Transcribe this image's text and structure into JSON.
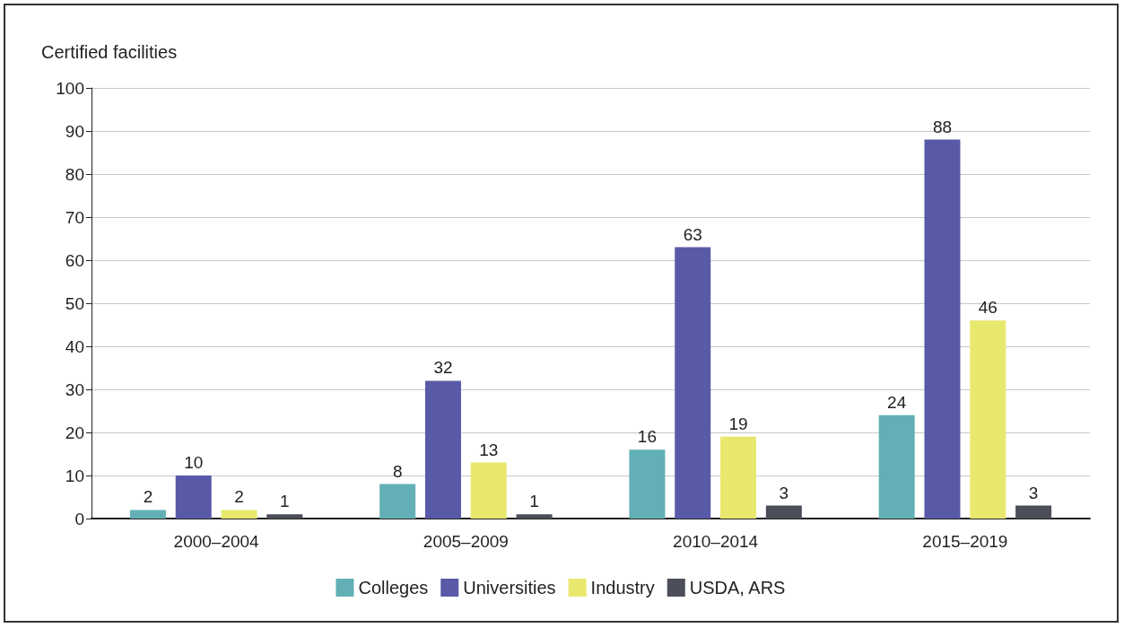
{
  "chart_data": {
    "type": "bar",
    "ylabel": "Certified facilities",
    "categories": [
      "2000–2004",
      "2005–2009",
      "2010–2014",
      "2015–2019"
    ],
    "series": [
      {
        "name": "Colleges",
        "color": "#62b0b5",
        "values": [
          2,
          8,
          16,
          24
        ]
      },
      {
        "name": "Universities",
        "color": "#585aa8",
        "values": [
          10,
          32,
          63,
          88
        ]
      },
      {
        "name": "Industry",
        "color": "#e8e86e",
        "values": [
          2,
          13,
          19,
          46
        ]
      },
      {
        "name": "USDA, ARS",
        "color": "#4c4f5a",
        "values": [
          1,
          1,
          3,
          3
        ]
      }
    ],
    "ylim": [
      0,
      100
    ],
    "yticks": [
      0,
      10,
      20,
      30,
      40,
      50,
      60,
      70,
      80,
      90,
      100
    ],
    "grid": "y",
    "legend": "bottom",
    "data_labels": true
  }
}
